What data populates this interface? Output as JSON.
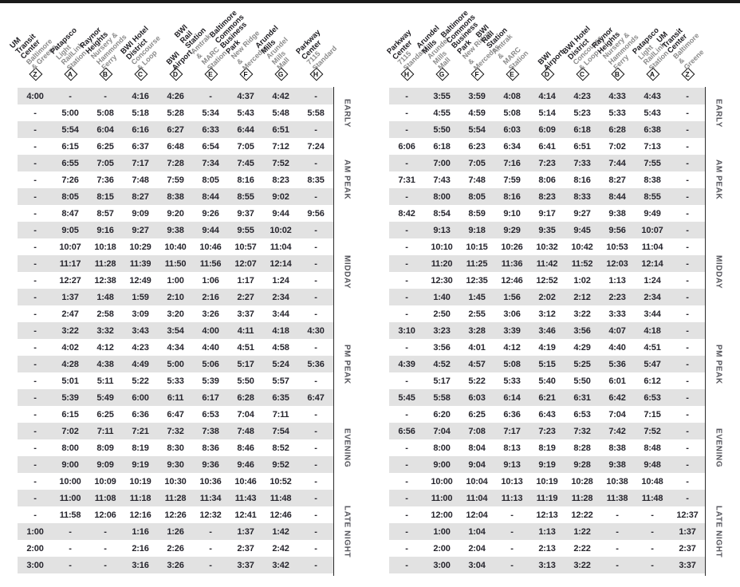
{
  "colors": {
    "top_bar": "#1a1a1a",
    "row_shade": "#e2e2e2",
    "time_text": "#26252d",
    "header_subtitle": "#8a8a8a",
    "period_label": "#55555c",
    "rail_line": "#2b2b2b",
    "badge": "#111111"
  },
  "periods": [
    {
      "label": "EARLY",
      "rows": 3
    },
    {
      "label": "AM PEAK",
      "rows": 5
    },
    {
      "label": "MIDDAY",
      "rows": 6
    },
    {
      "label": "PM PEAK",
      "rows": 5
    },
    {
      "label": "EVENING",
      "rows": 5
    },
    {
      "label": "LATE NIGHT",
      "rows": 5
    }
  ],
  "tables": [
    {
      "side": "left",
      "columns": [
        {
          "letter": "Z",
          "name": "UM Transit Center",
          "subtitle": "Baltimore & Greene"
        },
        {
          "letter": "A",
          "name": "Patapsco",
          "subtitle": "Light RailLink Station"
        },
        {
          "letter": "B",
          "name": "Raynor Heights",
          "subtitle": "Nursery & Hammonds Ferry"
        },
        {
          "letter": "C",
          "name": "BWI Hotel District",
          "subtitle": "Concourse & Loop"
        },
        {
          "letter": "D",
          "name": "BWI Airport",
          "subtitle": ""
        },
        {
          "letter": "E",
          "name": "BWI Rail Station",
          "subtitle": "Amtrak & MARC Station"
        },
        {
          "letter": "F",
          "name": "Baltimore Commons\nBusiness Park",
          "subtitle": "New Ridge & Mercedes"
        },
        {
          "letter": "G",
          "name": "Arundel Mills",
          "subtitle": "Arundel Mills Mall"
        },
        {
          "letter": "H",
          "name": "Parkway Center",
          "subtitle": "7115 Standard"
        }
      ],
      "rows": [
        [
          "4:00",
          "-",
          "-",
          "4:16",
          "4:26",
          "-",
          "4:37",
          "4:42",
          "-"
        ],
        [
          "-",
          "5:00",
          "5:08",
          "5:18",
          "5:28",
          "5:34",
          "5:43",
          "5:48",
          "5:58"
        ],
        [
          "-",
          "5:54",
          "6:04",
          "6:16",
          "6:27",
          "6:33",
          "6:44",
          "6:51",
          "-"
        ],
        [
          "-",
          "6:15",
          "6:25",
          "6:37",
          "6:48",
          "6:54",
          "7:05",
          "7:12",
          "7:24"
        ],
        [
          "-",
          "6:55",
          "7:05",
          "7:17",
          "7:28",
          "7:34",
          "7:45",
          "7:52",
          "-"
        ],
        [
          "-",
          "7:26",
          "7:36",
          "7:48",
          "7:59",
          "8:05",
          "8:16",
          "8:23",
          "8:35"
        ],
        [
          "-",
          "8:05",
          "8:15",
          "8:27",
          "8:38",
          "8:44",
          "8:55",
          "9:02",
          "-"
        ],
        [
          "-",
          "8:47",
          "8:57",
          "9:09",
          "9:20",
          "9:26",
          "9:37",
          "9:44",
          "9:56"
        ],
        [
          "-",
          "9:05",
          "9:16",
          "9:27",
          "9:38",
          "9:44",
          "9:55",
          "10:02",
          "-"
        ],
        [
          "-",
          "10:07",
          "10:18",
          "10:29",
          "10:40",
          "10:46",
          "10:57",
          "11:04",
          "-"
        ],
        [
          "-",
          "11:17",
          "11:28",
          "11:39",
          "11:50",
          "11:56",
          "12:07",
          "12:14",
          "-"
        ],
        [
          "-",
          "12:27",
          "12:38",
          "12:49",
          "1:00",
          "1:06",
          "1:17",
          "1:24",
          "-"
        ],
        [
          "-",
          "1:37",
          "1:48",
          "1:59",
          "2:10",
          "2:16",
          "2:27",
          "2:34",
          "-"
        ],
        [
          "-",
          "2:47",
          "2:58",
          "3:09",
          "3:20",
          "3:26",
          "3:37",
          "3:44",
          "-"
        ],
        [
          "-",
          "3:22",
          "3:32",
          "3:43",
          "3:54",
          "4:00",
          "4:11",
          "4:18",
          "4:30"
        ],
        [
          "-",
          "4:02",
          "4:12",
          "4:23",
          "4:34",
          "4:40",
          "4:51",
          "4:58",
          "-"
        ],
        [
          "-",
          "4:28",
          "4:38",
          "4:49",
          "5:00",
          "5:06",
          "5:17",
          "5:24",
          "5:36"
        ],
        [
          "-",
          "5:01",
          "5:11",
          "5:22",
          "5:33",
          "5:39",
          "5:50",
          "5:57",
          "-"
        ],
        [
          "-",
          "5:39",
          "5:49",
          "6:00",
          "6:11",
          "6:17",
          "6:28",
          "6:35",
          "6:47"
        ],
        [
          "-",
          "6:15",
          "6:25",
          "6:36",
          "6:47",
          "6:53",
          "7:04",
          "7:11",
          "-"
        ],
        [
          "-",
          "7:02",
          "7:11",
          "7:21",
          "7:32",
          "7:38",
          "7:48",
          "7:54",
          "-"
        ],
        [
          "-",
          "8:00",
          "8:09",
          "8:19",
          "8:30",
          "8:36",
          "8:46",
          "8:52",
          "-"
        ],
        [
          "-",
          "9:00",
          "9:09",
          "9:19",
          "9:30",
          "9:36",
          "9:46",
          "9:52",
          "-"
        ],
        [
          "-",
          "10:00",
          "10:09",
          "10:19",
          "10:30",
          "10:36",
          "10:46",
          "10:52",
          "-"
        ],
        [
          "-",
          "11:00",
          "11:08",
          "11:18",
          "11:28",
          "11:34",
          "11:43",
          "11:48",
          "-"
        ],
        [
          "-",
          "11:58",
          "12:06",
          "12:16",
          "12:26",
          "12:32",
          "12:41",
          "12:46",
          "-"
        ],
        [
          "1:00",
          "-",
          "-",
          "1:16",
          "1:26",
          "-",
          "1:37",
          "1:42",
          "-"
        ],
        [
          "2:00",
          "-",
          "-",
          "2:16",
          "2:26",
          "-",
          "2:37",
          "2:42",
          "-"
        ],
        [
          "3:00",
          "-",
          "-",
          "3:16",
          "3:26",
          "-",
          "3:37",
          "3:42",
          "-"
        ]
      ]
    },
    {
      "side": "right",
      "columns": [
        {
          "letter": "H",
          "name": "Parkway Center",
          "subtitle": "7115 Standard"
        },
        {
          "letter": "G",
          "name": "Arundel Mills",
          "subtitle": "Arundel Mills Mall"
        },
        {
          "letter": "F",
          "name": "Baltimore Commons\nBusiness Park",
          "subtitle": "New Ridge & Mercedes"
        },
        {
          "letter": "E",
          "name": "BWI Rail Station",
          "subtitle": "Amtrak & MARC Station"
        },
        {
          "letter": "D",
          "name": "BWI Airport",
          "subtitle": ""
        },
        {
          "letter": "C",
          "name": "BWI Hotel District",
          "subtitle": "Concourse & Loop"
        },
        {
          "letter": "B",
          "name": "Raynor Heights",
          "subtitle": "Nursery & Hammonds Ferry"
        },
        {
          "letter": "A",
          "name": "Patapsco",
          "subtitle": "Light RailLink Station"
        },
        {
          "letter": "Z",
          "name": "UM Transit Center",
          "subtitle": "Baltimore &\nGreene"
        }
      ],
      "rows": [
        [
          "-",
          "3:55",
          "3:59",
          "4:08",
          "4:14",
          "4:23",
          "4:33",
          "4:43",
          "-"
        ],
        [
          "-",
          "4:55",
          "4:59",
          "5:08",
          "5:14",
          "5:23",
          "5:33",
          "5:43",
          "-"
        ],
        [
          "-",
          "5:50",
          "5:54",
          "6:03",
          "6:09",
          "6:18",
          "6:28",
          "6:38",
          "-"
        ],
        [
          "6:06",
          "6:18",
          "6:23",
          "6:34",
          "6:41",
          "6:51",
          "7:02",
          "7:13",
          "-"
        ],
        [
          "-",
          "7:00",
          "7:05",
          "7:16",
          "7:23",
          "7:33",
          "7:44",
          "7:55",
          "-"
        ],
        [
          "7:31",
          "7:43",
          "7:48",
          "7:59",
          "8:06",
          "8:16",
          "8:27",
          "8:38",
          "-"
        ],
        [
          "-",
          "8:00",
          "8:05",
          "8:16",
          "8:23",
          "8:33",
          "8:44",
          "8:55",
          "-"
        ],
        [
          "8:42",
          "8:54",
          "8:59",
          "9:10",
          "9:17",
          "9:27",
          "9:38",
          "9:49",
          "-"
        ],
        [
          "-",
          "9:13",
          "9:18",
          "9:29",
          "9:35",
          "9:45",
          "9:56",
          "10:07",
          "-"
        ],
        [
          "-",
          "10:10",
          "10:15",
          "10:26",
          "10:32",
          "10:42",
          "10:53",
          "11:04",
          "-"
        ],
        [
          "-",
          "11:20",
          "11:25",
          "11:36",
          "11:42",
          "11:52",
          "12:03",
          "12:14",
          "-"
        ],
        [
          "-",
          "12:30",
          "12:35",
          "12:46",
          "12:52",
          "1:02",
          "1:13",
          "1:24",
          "-"
        ],
        [
          "-",
          "1:40",
          "1:45",
          "1:56",
          "2:02",
          "2:12",
          "2:23",
          "2:34",
          "-"
        ],
        [
          "-",
          "2:50",
          "2:55",
          "3:06",
          "3:12",
          "3:22",
          "3:33",
          "3:44",
          "-"
        ],
        [
          "3:10",
          "3:23",
          "3:28",
          "3:39",
          "3:46",
          "3:56",
          "4:07",
          "4:18",
          "-"
        ],
        [
          "-",
          "3:56",
          "4:01",
          "4:12",
          "4:19",
          "4:29",
          "4:40",
          "4:51",
          "-"
        ],
        [
          "4:39",
          "4:52",
          "4:57",
          "5:08",
          "5:15",
          "5:25",
          "5:36",
          "5:47",
          "-"
        ],
        [
          "-",
          "5:17",
          "5:22",
          "5:33",
          "5:40",
          "5:50",
          "6:01",
          "6:12",
          "-"
        ],
        [
          "5:45",
          "5:58",
          "6:03",
          "6:14",
          "6:21",
          "6:31",
          "6:42",
          "6:53",
          "-"
        ],
        [
          "-",
          "6:20",
          "6:25",
          "6:36",
          "6:43",
          "6:53",
          "7:04",
          "7:15",
          "-"
        ],
        [
          "6:56",
          "7:04",
          "7:08",
          "7:17",
          "7:23",
          "7:32",
          "7:42",
          "7:52",
          "-"
        ],
        [
          "-",
          "8:00",
          "8:04",
          "8:13",
          "8:19",
          "8:28",
          "8:38",
          "8:48",
          "-"
        ],
        [
          "-",
          "9:00",
          "9:04",
          "9:13",
          "9:19",
          "9:28",
          "9:38",
          "9:48",
          "-"
        ],
        [
          "-",
          "10:00",
          "10:04",
          "10:13",
          "10:19",
          "10:28",
          "10:38",
          "10:48",
          "-"
        ],
        [
          "-",
          "11:00",
          "11:04",
          "11:13",
          "11:19",
          "11:28",
          "11:38",
          "11:48",
          "-"
        ],
        [
          "-",
          "12:00",
          "12:04",
          "-",
          "12:13",
          "12:22",
          "-",
          "-",
          "12:37"
        ],
        [
          "-",
          "1:00",
          "1:04",
          "-",
          "1:13",
          "1:22",
          "-",
          "-",
          "1:37"
        ],
        [
          "-",
          "2:00",
          "2:04",
          "-",
          "2:13",
          "2:22",
          "-",
          "-",
          "2:37"
        ],
        [
          "-",
          "3:00",
          "3:04",
          "-",
          "3:13",
          "3:22",
          "-",
          "-",
          "3:37"
        ]
      ]
    }
  ]
}
